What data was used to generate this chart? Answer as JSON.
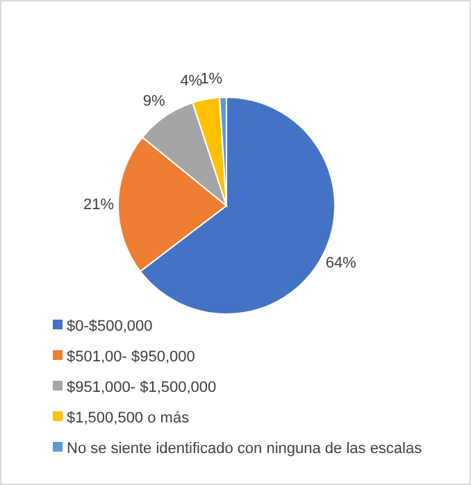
{
  "chart_data": {
    "type": "pie",
    "categories": [
      "$0-$500,000",
      "$501,00- $950,000",
      "$951,000- $1,500,000",
      "$1,500,500 o más",
      "No se siente identificado con ninguna de las escalas"
    ],
    "values": [
      64,
      21,
      9,
      4,
      1
    ],
    "colors": [
      "#4472c4",
      "#ed7d31",
      "#a5a5a5",
      "#ffc000",
      "#5b9bd5"
    ],
    "value_labels": [
      "64%",
      "21%",
      "9%",
      "4%",
      "1%"
    ],
    "legend": "bottom"
  }
}
